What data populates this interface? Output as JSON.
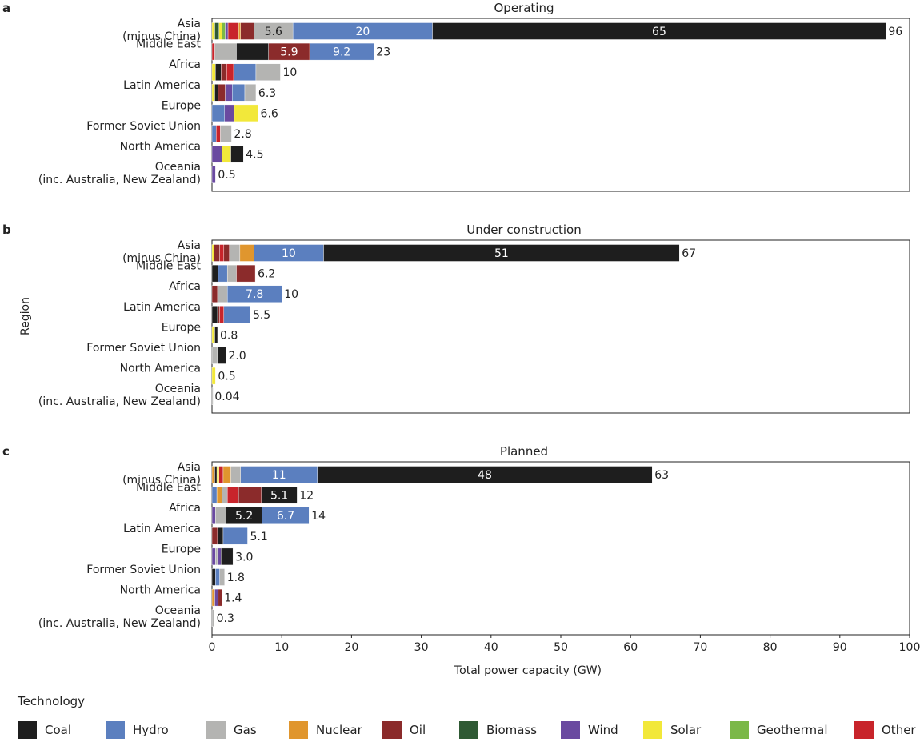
{
  "chart_data": {
    "type": "bar",
    "orientation": "horizontal",
    "stacked": true,
    "xlabel": "Total power capacity (GW)",
    "ylabel": "Region",
    "xlim": [
      0,
      100
    ],
    "xticks": [
      "0",
      "10",
      "20",
      "30",
      "40",
      "50",
      "60",
      "70",
      "80",
      "90",
      "100"
    ],
    "technologies": [
      {
        "key": "coal",
        "name": "Coal",
        "color": "#1e1e1e"
      },
      {
        "key": "hydro",
        "name": "Hydro",
        "color": "#5b7fbf"
      },
      {
        "key": "gas",
        "name": "Gas",
        "color": "#b4b4b2"
      },
      {
        "key": "nuclear",
        "name": "Nuclear",
        "color": "#e0962e"
      },
      {
        "key": "oil",
        "name": "Oil",
        "color": "#8b2b2b"
      },
      {
        "key": "biomass",
        "name": "Biomass",
        "color": "#2f5a34"
      },
      {
        "key": "wind",
        "name": "Wind",
        "color": "#6a4aa0"
      },
      {
        "key": "solar",
        "name": "Solar",
        "color": "#f2e83a"
      },
      {
        "key": "geothermal",
        "name": "Geothermal",
        "color": "#7bb848"
      },
      {
        "key": "other",
        "name": "Other",
        "color": "#c8242b"
      }
    ],
    "panels": [
      {
        "letter": "a",
        "title": "Operating",
        "rows": [
          {
            "region": [
              "Asia",
              "(minus China)"
            ],
            "total": "96",
            "segments": [
              {
                "tech": "solar",
                "value": 0.4
              },
              {
                "tech": "biomass",
                "value": 0.6
              },
              {
                "tech": "solar",
                "value": 0.4
              },
              {
                "tech": "geothermal",
                "value": 0.5
              },
              {
                "tech": "wind",
                "value": 0.4
              },
              {
                "tech": "other",
                "value": 1.5
              },
              {
                "tech": "nuclear",
                "value": 0.3
              },
              {
                "tech": "oil",
                "value": 1.9
              },
              {
                "tech": "gas",
                "value": 5.6,
                "label": "5.6"
              },
              {
                "tech": "hydro",
                "value": 20,
                "label": "20"
              },
              {
                "tech": "coal",
                "value": 65,
                "label": "65"
              }
            ]
          },
          {
            "region": [
              "Middle East"
            ],
            "total": "23",
            "segments": [
              {
                "tech": "other",
                "value": 0.4
              },
              {
                "tech": "gas",
                "value": 3.1
              },
              {
                "tech": "coal",
                "value": 4.6
              },
              {
                "tech": "oil",
                "value": 5.9,
                "label": "5.9"
              },
              {
                "tech": "hydro",
                "value": 9.2,
                "label": "9.2"
              }
            ]
          },
          {
            "region": [
              "Africa"
            ],
            "total": "10",
            "segments": [
              {
                "tech": "solar",
                "value": 0.5
              },
              {
                "tech": "coal",
                "value": 0.8
              },
              {
                "tech": "oil",
                "value": 0.8
              },
              {
                "tech": "other",
                "value": 1.0
              },
              {
                "tech": "hydro",
                "value": 3.2
              },
              {
                "tech": "gas",
                "value": 3.5
              }
            ]
          },
          {
            "region": [
              "Latin America"
            ],
            "total": "6.3",
            "segments": [
              {
                "tech": "solar",
                "value": 0.4
              },
              {
                "tech": "coal",
                "value": 0.5
              },
              {
                "tech": "oil",
                "value": 1.0
              },
              {
                "tech": "wind",
                "value": 1.0
              },
              {
                "tech": "hydro",
                "value": 1.8
              },
              {
                "tech": "gas",
                "value": 1.6
              }
            ]
          },
          {
            "region": [
              "Europe"
            ],
            "total": "6.6",
            "segments": [
              {
                "tech": "hydro",
                "value": 1.8
              },
              {
                "tech": "wind",
                "value": 1.4
              },
              {
                "tech": "solar",
                "value": 3.4
              }
            ]
          },
          {
            "region": [
              "Former Soviet Union"
            ],
            "total": "2.8",
            "segments": [
              {
                "tech": "hydro",
                "value": 0.6
              },
              {
                "tech": "other",
                "value": 0.6
              },
              {
                "tech": "gas",
                "value": 1.6
              }
            ]
          },
          {
            "region": [
              "North America"
            ],
            "total": "4.5",
            "segments": [
              {
                "tech": "wind",
                "value": 1.4
              },
              {
                "tech": "solar",
                "value": 1.3
              },
              {
                "tech": "coal",
                "value": 1.8
              }
            ]
          },
          {
            "region": [
              "Oceania",
              "(inc. Australia, New Zealand)"
            ],
            "total": "0.5",
            "segments": [
              {
                "tech": "wind",
                "value": 0.5
              }
            ]
          }
        ]
      },
      {
        "letter": "b",
        "title": "Under construction",
        "rows": [
          {
            "region": [
              "Asia",
              "(minus China)"
            ],
            "total": "67",
            "segments": [
              {
                "tech": "solar",
                "value": 0.3
              },
              {
                "tech": "oil",
                "value": 0.8
              },
              {
                "tech": "other",
                "value": 0.6
              },
              {
                "tech": "oil",
                "value": 0.8
              },
              {
                "tech": "gas",
                "value": 1.5
              },
              {
                "tech": "nuclear",
                "value": 2.0
              },
              {
                "tech": "hydro",
                "value": 10,
                "label": "10"
              },
              {
                "tech": "coal",
                "value": 51,
                "label": "51"
              }
            ]
          },
          {
            "region": [
              "Middle East"
            ],
            "total": "6.2",
            "segments": [
              {
                "tech": "coal",
                "value": 0.9
              },
              {
                "tech": "hydro",
                "value": 1.3
              },
              {
                "tech": "gas",
                "value": 1.3
              },
              {
                "tech": "oil",
                "value": 2.7
              }
            ]
          },
          {
            "region": [
              "Africa"
            ],
            "total": "10",
            "segments": [
              {
                "tech": "oil",
                "value": 0.8
              },
              {
                "tech": "gas",
                "value": 1.4
              },
              {
                "tech": "hydro",
                "value": 7.8,
                "label": "7.8"
              }
            ]
          },
          {
            "region": [
              "Latin America"
            ],
            "total": "5.5",
            "segments": [
              {
                "tech": "coal",
                "value": 0.8
              },
              {
                "tech": "oil",
                "value": 0.3
              },
              {
                "tech": "other",
                "value": 0.6
              },
              {
                "tech": "hydro",
                "value": 3.8
              }
            ]
          },
          {
            "region": [
              "Europe"
            ],
            "total": "0.8",
            "segments": [
              {
                "tech": "solar",
                "value": 0.4
              },
              {
                "tech": "coal",
                "value": 0.4
              }
            ]
          },
          {
            "region": [
              "Former Soviet Union"
            ],
            "total": "2.0",
            "segments": [
              {
                "tech": "gas",
                "value": 0.8
              },
              {
                "tech": "coal",
                "value": 1.2
              }
            ]
          },
          {
            "region": [
              "North America"
            ],
            "total": "0.5",
            "segments": [
              {
                "tech": "solar",
                "value": 0.5
              }
            ]
          },
          {
            "region": [
              "Oceania",
              "(inc. Australia, New Zealand)"
            ],
            "total": "0.04",
            "segments": [
              {
                "tech": "gas",
                "value": 0.04
              }
            ]
          }
        ]
      },
      {
        "letter": "c",
        "title": "Planned",
        "rows": [
          {
            "region": [
              "Asia",
              "(minus China)"
            ],
            "total": "63",
            "segments": [
              {
                "tech": "nuclear",
                "value": 0.4
              },
              {
                "tech": "coal",
                "value": 0.3
              },
              {
                "tech": "solar",
                "value": 0.3
              },
              {
                "tech": "other",
                "value": 0.6
              },
              {
                "tech": "nuclear",
                "value": 1.1
              },
              {
                "tech": "gas",
                "value": 1.4
              },
              {
                "tech": "hydro",
                "value": 11,
                "label": "11"
              },
              {
                "tech": "coal",
                "value": 48,
                "label": "48"
              }
            ]
          },
          {
            "region": [
              "Middle East"
            ],
            "total": "12",
            "segments": [
              {
                "tech": "hydro",
                "value": 0.7
              },
              {
                "tech": "nuclear",
                "value": 0.7
              },
              {
                "tech": "gas",
                "value": 0.8
              },
              {
                "tech": "other",
                "value": 1.6
              },
              {
                "tech": "oil",
                "value": 3.3
              },
              {
                "tech": "coal",
                "value": 5.1,
                "label": "5.1"
              }
            ]
          },
          {
            "region": [
              "Africa"
            ],
            "total": "14",
            "segments": [
              {
                "tech": "wind",
                "value": 0.5
              },
              {
                "tech": "gas",
                "value": 1.5
              },
              {
                "tech": "coal",
                "value": 5.2,
                "label": "5.2"
              },
              {
                "tech": "hydro",
                "value": 6.7,
                "label": "6.7"
              }
            ]
          },
          {
            "region": [
              "Latin America"
            ],
            "total": "5.1",
            "segments": [
              {
                "tech": "oil",
                "value": 0.8
              },
              {
                "tech": "coal",
                "value": 0.8
              },
              {
                "tech": "hydro",
                "value": 3.5
              }
            ]
          },
          {
            "region": [
              "Europe"
            ],
            "total": "3.0",
            "segments": [
              {
                "tech": "wind",
                "value": 0.5
              },
              {
                "tech": "gas",
                "value": 0.3
              },
              {
                "tech": "wind",
                "value": 0.5
              },
              {
                "tech": "coal",
                "value": 1.7
              }
            ]
          },
          {
            "region": [
              "Former Soviet Union"
            ],
            "total": "1.8",
            "segments": [
              {
                "tech": "coal",
                "value": 0.5
              },
              {
                "tech": "hydro",
                "value": 0.6
              },
              {
                "tech": "gas",
                "value": 0.7
              }
            ]
          },
          {
            "region": [
              "North America"
            ],
            "total": "1.4",
            "segments": [
              {
                "tech": "nuclear",
                "value": 0.4
              },
              {
                "tech": "wind",
                "value": 0.5
              },
              {
                "tech": "oil",
                "value": 0.5
              }
            ]
          },
          {
            "region": [
              "Oceania",
              "(inc. Australia, New Zealand)"
            ],
            "total": "0.3",
            "segments": [
              {
                "tech": "gas",
                "value": 0.3
              }
            ]
          }
        ]
      }
    ]
  },
  "legend": {
    "title": "Technology",
    "items": [
      {
        "name": "Coal",
        "color": "#1e1e1e"
      },
      {
        "name": "Hydro",
        "color": "#5b7fbf"
      },
      {
        "name": "Gas",
        "color": "#b4b4b2"
      },
      {
        "name": "Nuclear",
        "color": "#e0962e"
      },
      {
        "name": "Oil",
        "color": "#8b2b2b"
      },
      {
        "name": "Biomass",
        "color": "#2f5a34"
      },
      {
        "name": "Wind",
        "color": "#6a4aa0"
      },
      {
        "name": "Solar",
        "color": "#f2e83a"
      },
      {
        "name": "Geothermal",
        "color": "#7bb848"
      },
      {
        "name": "Other",
        "color": "#c8242b"
      }
    ]
  }
}
